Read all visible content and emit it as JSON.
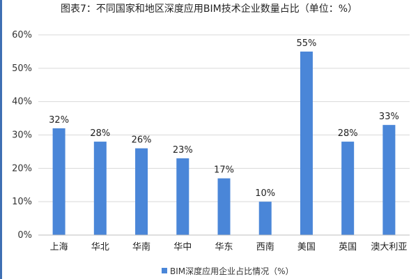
{
  "page": {
    "title": "图表7：不同国家和地区深度应用BIM技术企业数量占比（单位：%）"
  },
  "chart_data": {
    "type": "bar",
    "title": "图表7：不同国家和地区深度应用BIM技术企业数量占比（单位：%）",
    "categories": [
      "上海",
      "华北",
      "华南",
      "华中",
      "华东",
      "西南",
      "美国",
      "英国",
      "澳大利亚"
    ],
    "series": [
      {
        "name": "BIM深度应用企业占比情况（%）",
        "values": [
          32,
          28,
          26,
          23,
          17,
          10,
          55,
          28,
          33
        ],
        "labels": [
          "32%",
          "28%",
          "26%",
          "23%",
          "17%",
          "10%",
          "55%",
          "28%",
          "33%"
        ],
        "color": "#4a86d8"
      }
    ],
    "xlabel": "",
    "ylabel": "",
    "ylim": [
      0,
      60
    ],
    "yticks": [
      0,
      10,
      20,
      30,
      40,
      50,
      60
    ],
    "ytick_labels": [
      "0%",
      "10%",
      "20%",
      "30%",
      "40%",
      "50%",
      "60%"
    ],
    "grid": true,
    "legend_position": "bottom",
    "gridline_color": "#d9d9d9",
    "axis_color": "#bfbfbf",
    "accent_edge_color": "#3f6fb3"
  }
}
